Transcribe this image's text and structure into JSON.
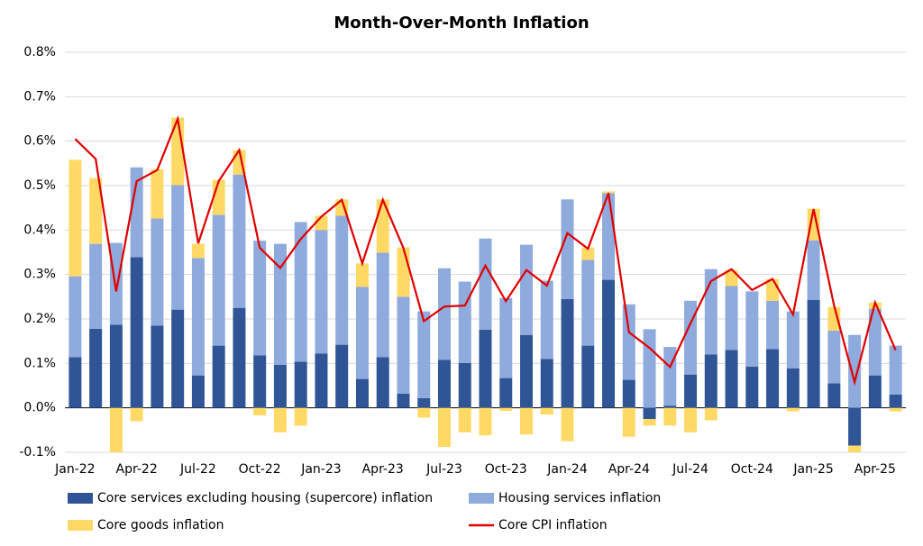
{
  "chart_data": {
    "type": "stacked-bar-line",
    "title": "Month-Over-Month Inflation",
    "categories": [
      "Jan-22",
      null,
      null,
      "Apr-22",
      null,
      null,
      "Jul-22",
      null,
      null,
      "Oct-22",
      null,
      null,
      "Jan-23",
      null,
      null,
      "Apr-23",
      null,
      null,
      "Jul-23",
      null,
      null,
      "Oct-23",
      null,
      null,
      "Jan-24",
      null,
      null,
      "Apr-24",
      null,
      null,
      "Jul-24",
      null,
      null,
      "Oct-24",
      null,
      null,
      "Jan-25",
      null,
      null,
      "Apr-25",
      null
    ],
    "series": [
      {
        "name": "Core services excluding housing (supercore) inflation",
        "color": "#2f5597",
        "kind": "bar",
        "values": [
          0.114,
          0.178,
          0.187,
          0.339,
          0.185,
          0.221,
          0.073,
          0.14,
          0.225,
          0.118,
          0.097,
          0.104,
          0.122,
          0.142,
          0.065,
          0.114,
          0.032,
          0.022,
          0.108,
          0.101,
          0.176,
          0.067,
          0.164,
          0.11,
          0.245,
          0.14,
          0.288,
          0.063,
          -0.025,
          0.005,
          0.075,
          0.12,
          0.13,
          0.093,
          0.132,
          0.089,
          0.243,
          0.055,
          -0.085,
          0.073,
          0.03
        ]
      },
      {
        "name": "Housing services inflation",
        "color": "#8faadc",
        "kind": "bar",
        "values": [
          0.182,
          0.191,
          0.184,
          0.202,
          0.241,
          0.28,
          0.264,
          0.294,
          0.3,
          0.258,
          0.272,
          0.314,
          0.278,
          0.29,
          0.207,
          0.235,
          0.218,
          0.195,
          0.206,
          0.183,
          0.205,
          0.18,
          0.203,
          0.176,
          0.224,
          0.193,
          0.195,
          0.17,
          0.177,
          0.132,
          0.166,
          0.192,
          0.144,
          0.169,
          0.109,
          0.128,
          0.134,
          0.119,
          0.164,
          0.15,
          0.11
        ]
      },
      {
        "name": "Core goods inflation",
        "color": "#ffd966",
        "kind": "bar",
        "values": [
          0.262,
          0.148,
          -0.1,
          -0.03,
          0.111,
          0.152,
          0.032,
          0.079,
          0.055,
          -0.017,
          -0.055,
          -0.04,
          0.032,
          0.037,
          0.053,
          0.12,
          0.111,
          -0.022,
          -0.088,
          -0.055,
          -0.062,
          -0.007,
          -0.06,
          -0.015,
          -0.075,
          0.028,
          0.004,
          -0.065,
          -0.015,
          -0.04,
          -0.055,
          -0.028,
          0.036,
          0,
          0.049,
          -0.008,
          0.071,
          0.053,
          -0.015,
          0.014,
          -0.008
        ]
      },
      {
        "name": "Core CPI inflation",
        "color": "#e00000",
        "kind": "line",
        "values": [
          0.605,
          0.56,
          0.262,
          0.51,
          0.535,
          0.65,
          0.37,
          0.51,
          0.58,
          0.36,
          0.315,
          0.38,
          0.43,
          0.468,
          0.325,
          0.468,
          0.36,
          0.195,
          0.228,
          0.23,
          0.32,
          0.24,
          0.31,
          0.275,
          0.393,
          0.358,
          0.483,
          0.17,
          0.135,
          0.092,
          0.19,
          0.285,
          0.312,
          0.265,
          0.29,
          0.21,
          0.447,
          0.23,
          0.058,
          0.237,
          0.13
        ]
      }
    ],
    "ylim": [
      -0.1,
      0.8
    ],
    "yticks": [
      {
        "value": -0.1,
        "label": "-0.1%"
      },
      {
        "value": 0,
        "label": "0.0%"
      },
      {
        "value": 0.1,
        "label": "0.1%"
      },
      {
        "value": 0.2,
        "label": "0.2%"
      },
      {
        "value": 0.3,
        "label": "0.3%"
      },
      {
        "value": 0.4,
        "label": "0.4%"
      },
      {
        "value": 0.5,
        "label": "0.5%"
      },
      {
        "value": 0.6,
        "label": "0.6%"
      },
      {
        "value": 0.7,
        "label": "0.7%"
      },
      {
        "value": 0.8,
        "label": "0.8%"
      }
    ],
    "grid": true,
    "legend": "bottom"
  }
}
